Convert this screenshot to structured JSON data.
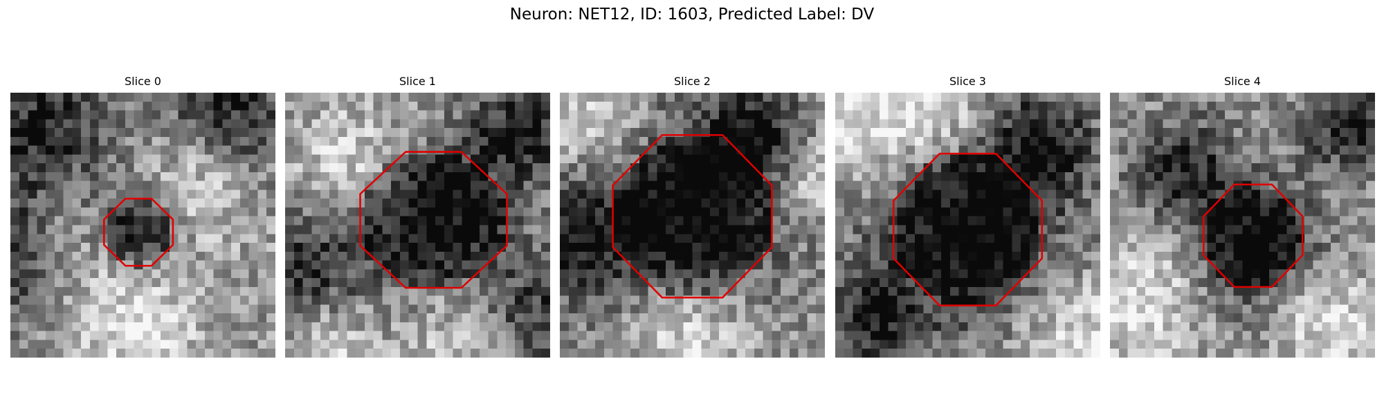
{
  "figure": {
    "title": "Neuron: NET12, ID: 1603, Predicted Label: DV",
    "colormap": "gray",
    "contour_color": "#e00000"
  },
  "grid_size": 30,
  "slices": [
    {
      "label": "Slice 0",
      "seed": 11,
      "dark_spots": [
        [
          3,
          4,
          6
        ],
        [
          14,
          15,
          4
        ],
        [
          24,
          2,
          5
        ],
        [
          1,
          18,
          5
        ]
      ],
      "bright_spots": [
        [
          7,
          16,
          5
        ],
        [
          20,
          10,
          5
        ],
        [
          14,
          26,
          5
        ]
      ],
      "roi": {
        "cx": 14.5,
        "cy": 15.8,
        "rx": 3.9,
        "ry": 3.8
      }
    },
    {
      "label": "Slice 1",
      "seed": 23,
      "dark_spots": [
        [
          16,
          13,
          6
        ],
        [
          2,
          20,
          5
        ],
        [
          27,
          25,
          5
        ],
        [
          26,
          4,
          4
        ]
      ],
      "bright_spots": [
        [
          8,
          8,
          5
        ],
        [
          21,
          27,
          5
        ],
        [
          4,
          27,
          4
        ]
      ],
      "roi": {
        "cx": 16.8,
        "cy": 14.4,
        "rx": 8.3,
        "ry": 7.7
      }
    },
    {
      "label": "Slice 2",
      "seed": 37,
      "dark_spots": [
        [
          15,
          13,
          8
        ],
        [
          1,
          16,
          5
        ],
        [
          22,
          4,
          4
        ]
      ],
      "bright_spots": [
        [
          14,
          26,
          5
        ],
        [
          3,
          3,
          4
        ],
        [
          28,
          9,
          4
        ]
      ],
      "roi": {
        "cx": 15.0,
        "cy": 14.0,
        "rx": 9.0,
        "ry": 9.2
      }
    },
    {
      "label": "Slice 3",
      "seed": 51,
      "dark_spots": [
        [
          15,
          15,
          8
        ],
        [
          23,
          5,
          4
        ],
        [
          4,
          25,
          4
        ]
      ],
      "bright_spots": [
        [
          2,
          3,
          5
        ],
        [
          27,
          27,
          5
        ],
        [
          11,
          2,
          4
        ]
      ],
      "roi": {
        "cx": 15.0,
        "cy": 15.5,
        "rx": 8.4,
        "ry": 8.6
      }
    },
    {
      "label": "Slice 4",
      "seed": 73,
      "dark_spots": [
        [
          16,
          17,
          5
        ],
        [
          27,
          3,
          4
        ],
        [
          8,
          8,
          4
        ]
      ],
      "bright_spots": [
        [
          3,
          23,
          5
        ],
        [
          24,
          25,
          4
        ]
      ],
      "roi": {
        "cx": 16.2,
        "cy": 16.2,
        "rx": 5.6,
        "ry": 5.8
      }
    }
  ]
}
